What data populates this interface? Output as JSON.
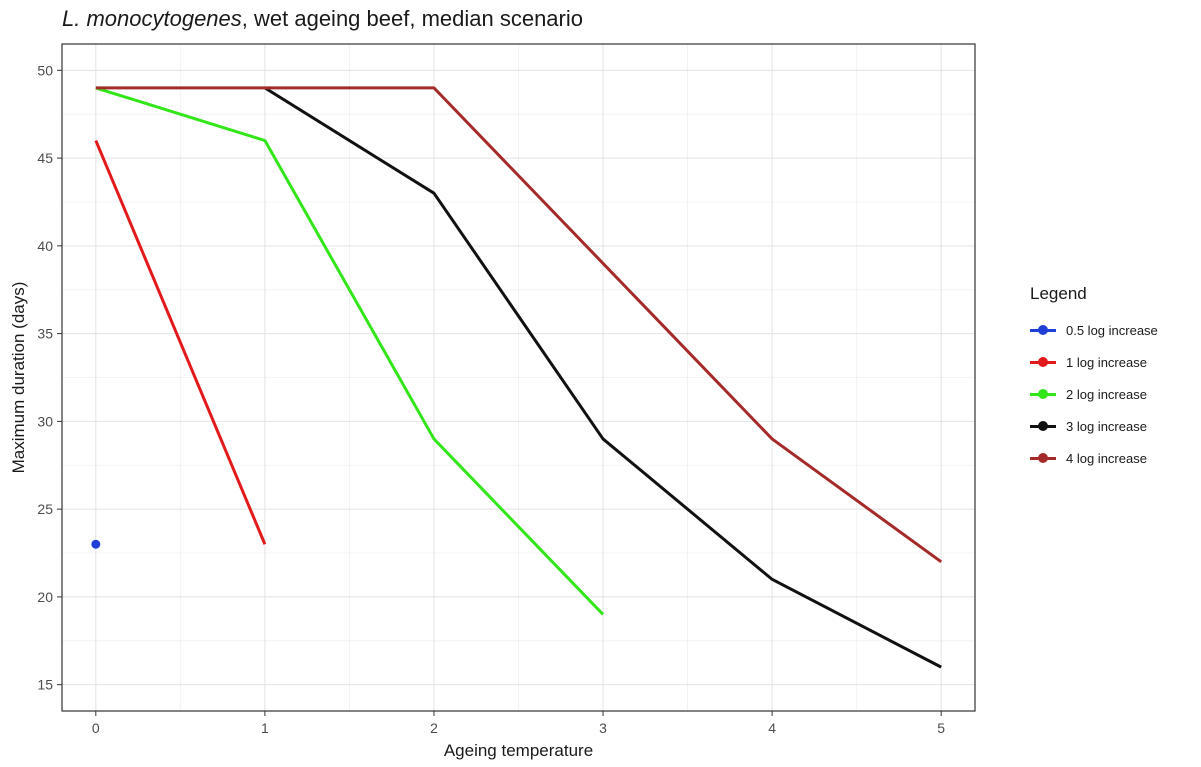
{
  "title": {
    "italic": "L. monocytogenes",
    "rest": ", wet ageing beef, median scenario"
  },
  "chart_data": {
    "type": "line",
    "title": "L. monocytogenes, wet ageing beef, median scenario",
    "xlabel": "Ageing temperature",
    "ylabel": "Maximum duration (days)",
    "xlim": [
      -0.2,
      5.2
    ],
    "ylim": [
      13.5,
      51.5
    ],
    "xticks": [
      0,
      1,
      2,
      3,
      4,
      5
    ],
    "yticks": [
      15,
      20,
      25,
      30,
      35,
      40,
      45,
      50
    ],
    "grid": true,
    "legend": {
      "title": "Legend",
      "position": "right"
    },
    "series": [
      {
        "name": "0.5 log increase",
        "color": "#1f3fd6",
        "x": [
          0
        ],
        "y": [
          23
        ]
      },
      {
        "name": "1 log increase",
        "color": "#e31a1c",
        "x": [
          0,
          1
        ],
        "y": [
          46,
          23
        ]
      },
      {
        "name": "2 log increase",
        "color": "#33e61a",
        "x": [
          0,
          1,
          2,
          3
        ],
        "y": [
          49,
          46,
          29,
          19
        ]
      },
      {
        "name": "3 log increase",
        "color": "#111111",
        "x": [
          1,
          2,
          3,
          4,
          5
        ],
        "y": [
          49,
          43,
          29,
          21,
          16
        ]
      },
      {
        "name": "4 log increase",
        "color": "#a52a2a",
        "x": [
          0,
          1,
          2,
          3,
          4,
          5
        ],
        "y": [
          49,
          49,
          49,
          39,
          29,
          22
        ]
      }
    ]
  }
}
